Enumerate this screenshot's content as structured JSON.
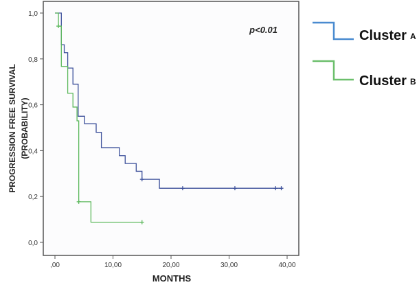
{
  "chart_data": {
    "type": "line",
    "subtype": "kaplan-meier step",
    "xlabel": "MONTHS",
    "ylabel": [
      "PROGRESSION FREE SURVIVAL",
      "(PROBABILITY)"
    ],
    "annotation": "p<0.01",
    "xlim": [
      0,
      42
    ],
    "ylim": [
      0,
      1.05
    ],
    "xticks": [
      0,
      10,
      20,
      30,
      40
    ],
    "xtick_labels": [
      ",00",
      "10,00",
      "20,00",
      "30,00",
      "40,00"
    ],
    "yticks": [
      0,
      0.2,
      0.4,
      0.6,
      0.8,
      1.0
    ],
    "ytick_labels": [
      "0,0",
      "0,2",
      "0,4",
      "0,6",
      "0,8",
      "1,0"
    ],
    "grid": false,
    "legend_placement": "right-outside",
    "series": [
      {
        "name": "Cluster",
        "name_suffix": "A",
        "color": "#3b4f9a",
        "legend_color": "#4a8bd0",
        "start_x": 0,
        "steps": [
          [
            1.1,
            0.862
          ],
          [
            1.6,
            0.827
          ],
          [
            2.2,
            0.76
          ],
          [
            3.1,
            0.69
          ],
          [
            4.0,
            0.55
          ],
          [
            5.1,
            0.517
          ],
          [
            7.1,
            0.48
          ],
          [
            8.0,
            0.413
          ],
          [
            11.1,
            0.378
          ],
          [
            12.1,
            0.344
          ],
          [
            14.0,
            0.31
          ],
          [
            15.0,
            0.275
          ],
          [
            18.0,
            0.236
          ]
        ],
        "end_x": 39,
        "censored": [
          [
            15.0,
            0.275
          ],
          [
            22,
            0.236
          ],
          [
            31,
            0.236
          ],
          [
            38,
            0.236
          ],
          [
            39,
            0.236
          ]
        ]
      },
      {
        "name": "Cluster",
        "name_suffix": "B",
        "color": "#5cb85c",
        "legend_color": "#6cbf6c",
        "start_x": 0,
        "steps": [
          [
            0.6,
            0.943
          ],
          [
            1.1,
            0.767
          ],
          [
            2.2,
            0.65
          ],
          [
            3.1,
            0.59
          ],
          [
            3.8,
            0.53
          ],
          [
            4.1,
            0.177
          ],
          [
            6.2,
            0.088
          ]
        ],
        "end_x": 15,
        "censored": [
          [
            0.6,
            0.943
          ],
          [
            4.1,
            0.177
          ],
          [
            15,
            0.088
          ]
        ]
      }
    ]
  }
}
